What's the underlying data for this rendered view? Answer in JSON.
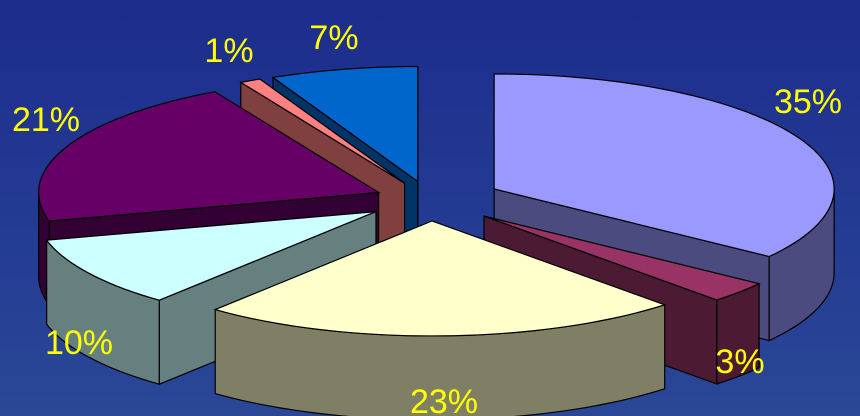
{
  "chart_data": {
    "type": "pie",
    "style": "3d-exploded",
    "title": "",
    "legend": "none",
    "label_color": "#ffff00",
    "slices": [
      {
        "value": 35,
        "label": "35%",
        "color_top": "#9999ff",
        "color_side": "#4b4b80"
      },
      {
        "value": 3,
        "label": "3%",
        "color_top": "#993366",
        "color_side": "#4c1a33"
      },
      {
        "value": 23,
        "label": "23%",
        "color_top": "#ffffcc",
        "color_side": "#7f7f66"
      },
      {
        "value": 10,
        "label": "10%",
        "color_top": "#ccffff",
        "color_side": "#668080"
      },
      {
        "value": 21,
        "label": "21%",
        "color_top": "#660066",
        "color_side": "#330033"
      },
      {
        "value": 1,
        "label": "1%",
        "color_top": "#ff8080",
        "color_side": "#804040"
      },
      {
        "value": 7,
        "label": "7%",
        "color_top": "#0066cc",
        "color_side": "#003366"
      }
    ]
  }
}
